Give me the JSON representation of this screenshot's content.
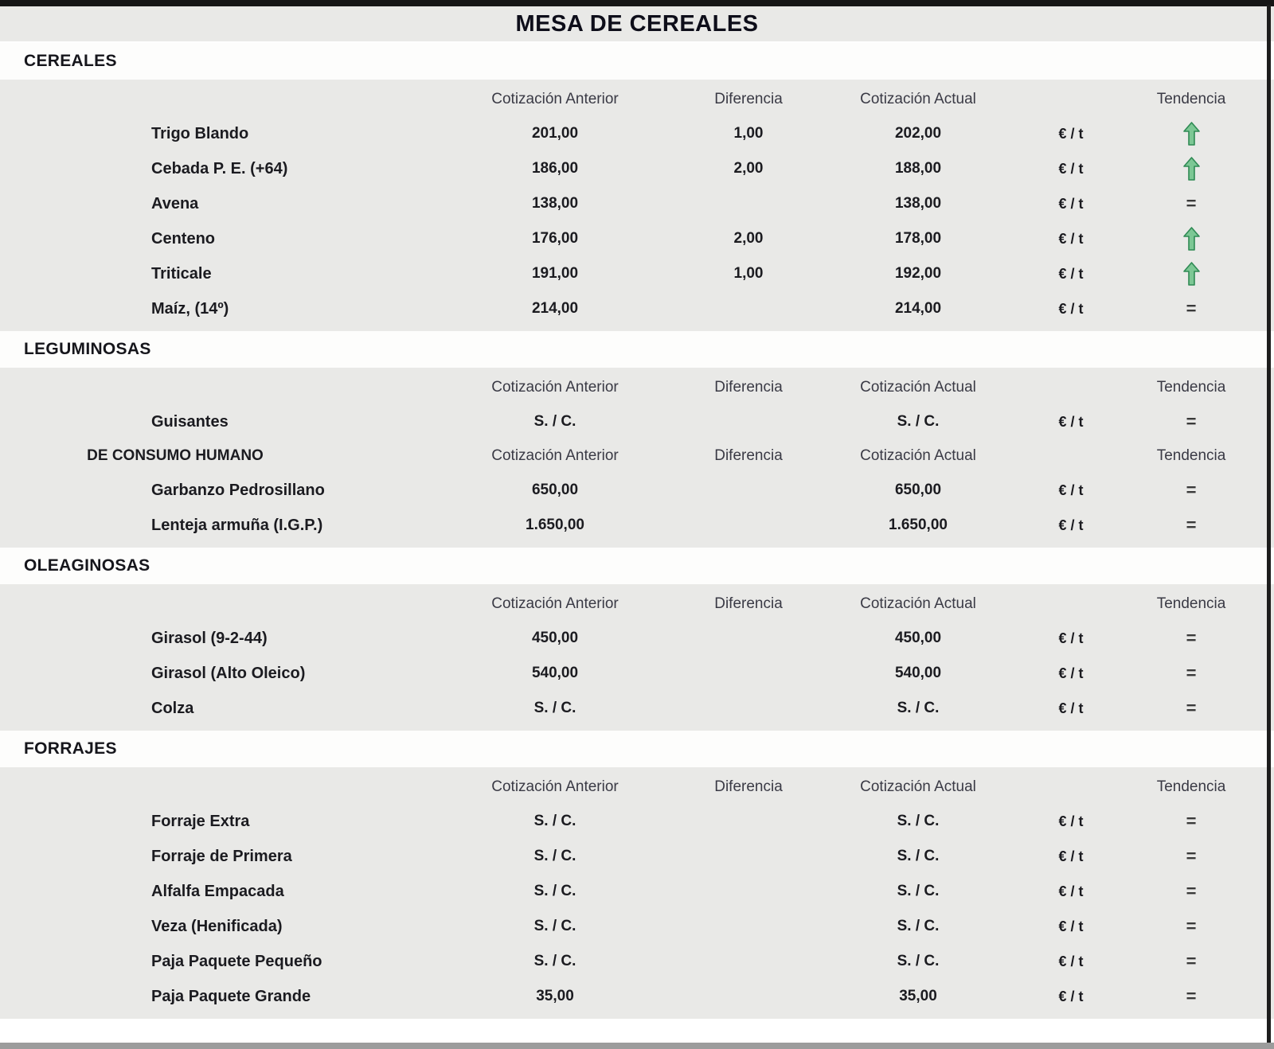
{
  "title": "MESA DE CEREALES",
  "unit_label": "€ / t",
  "columns": {
    "anterior": "Cotización Anterior",
    "diferencia": "Diferencia",
    "actual": "Cotización Actual",
    "tendencia": "Tendencia"
  },
  "trend_glyphs": {
    "up": "↑",
    "equal": "="
  },
  "icons": {
    "up": "trend-up-arrow-icon",
    "equal": "trend-equal-icon"
  },
  "colors": {
    "trend_up_green": "#54ab72",
    "trend_equal_dark": "#3a3a3a",
    "band_gray": "#e9e9e7",
    "band_white": "#fdfdfc",
    "top_bar": "#161616",
    "bottom_bar": "#9c9c9c"
  },
  "sections": [
    {
      "title": "CEREALES",
      "blocks": [
        {
          "label": "",
          "rows": [
            {
              "name": "Trigo Blando",
              "anterior": "201,00",
              "diferencia": "1,00",
              "actual": "202,00",
              "trend": "up"
            },
            {
              "name": "Cebada P. E. (+64)",
              "anterior": "186,00",
              "diferencia": "2,00",
              "actual": "188,00",
              "trend": "up"
            },
            {
              "name": "Avena",
              "anterior": "138,00",
              "diferencia": "",
              "actual": "138,00",
              "trend": "equal"
            },
            {
              "name": "Centeno",
              "anterior": "176,00",
              "diferencia": "2,00",
              "actual": "178,00",
              "trend": "up"
            },
            {
              "name": "Triticale",
              "anterior": "191,00",
              "diferencia": "1,00",
              "actual": "192,00",
              "trend": "up"
            },
            {
              "name": "Maíz, (14º)",
              "anterior": "214,00",
              "diferencia": "",
              "actual": "214,00",
              "trend": "equal"
            }
          ]
        }
      ]
    },
    {
      "title": "LEGUMINOSAS",
      "blocks": [
        {
          "label": "",
          "rows": [
            {
              "name": "Guisantes",
              "anterior": "S. / C.",
              "diferencia": "",
              "actual": "S. / C.",
              "trend": "equal"
            }
          ]
        },
        {
          "label": "DE CONSUMO HUMANO",
          "rows": [
            {
              "name": "Garbanzo Pedrosillano",
              "anterior": "650,00",
              "diferencia": "",
              "actual": "650,00",
              "trend": "equal"
            },
            {
              "name": "Lenteja armuña (I.G.P.)",
              "anterior": "1.650,00",
              "diferencia": "",
              "actual": "1.650,00",
              "trend": "equal"
            }
          ]
        }
      ]
    },
    {
      "title": "OLEAGINOSAS",
      "blocks": [
        {
          "label": "",
          "rows": [
            {
              "name": "Girasol (9-2-44)",
              "anterior": "450,00",
              "diferencia": "",
              "actual": "450,00",
              "trend": "equal"
            },
            {
              "name": "Girasol (Alto Oleico)",
              "anterior": "540,00",
              "diferencia": "",
              "actual": "540,00",
              "trend": "equal"
            },
            {
              "name": "Colza",
              "anterior": "S. / C.",
              "diferencia": "",
              "actual": "S. / C.",
              "trend": "equal"
            }
          ]
        }
      ]
    },
    {
      "title": "FORRAJES",
      "blocks": [
        {
          "label": "",
          "rows": [
            {
              "name": "Forraje Extra",
              "anterior": "S. / C.",
              "diferencia": "",
              "actual": "S. / C.",
              "trend": "equal"
            },
            {
              "name": "Forraje de Primera",
              "anterior": "S. / C.",
              "diferencia": "",
              "actual": "S. / C.",
              "trend": "equal"
            },
            {
              "name": "Alfalfa Empacada",
              "anterior": "S. / C.",
              "diferencia": "",
              "actual": "S. / C.",
              "trend": "equal"
            },
            {
              "name": "Veza (Henificada)",
              "anterior": "S. / C.",
              "diferencia": "",
              "actual": "S. / C.",
              "trend": "equal"
            },
            {
              "name": "Paja Paquete Pequeño",
              "anterior": "S. / C.",
              "diferencia": "",
              "actual": "S. / C.",
              "trend": "equal"
            },
            {
              "name": "Paja Paquete Grande",
              "anterior": "35,00",
              "diferencia": "",
              "actual": "35,00",
              "trend": "equal"
            }
          ]
        }
      ]
    }
  ]
}
